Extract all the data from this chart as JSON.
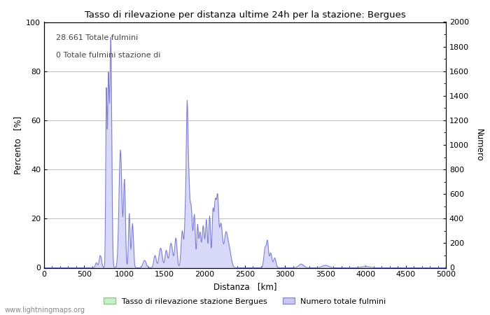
{
  "title": "Tasso di rilevazione per distanza ultime 24h per la stazione: Bergues",
  "xlabel": "Distanza   [km]",
  "ylabel_left": "Percento   [%]",
  "ylabel_right": "Numero",
  "annotation_lines": [
    "28.661 Totale fulmini",
    "0 Totale fulmini stazione di"
  ],
  "watermark": "www.lightningmaps.org",
  "legend": [
    {
      "label": "Tasso di rilevazione stazione Bergues",
      "color": "#c8f0c8",
      "edge": "#90c890"
    },
    {
      "label": "Numero totale fulmini",
      "color": "#c8c8f0",
      "edge": "#9090c8"
    }
  ],
  "xlim": [
    0,
    5000
  ],
  "ylim_left": [
    0,
    100
  ],
  "ylim_right": [
    0,
    2000
  ],
  "xticks": [
    0,
    500,
    1000,
    1500,
    2000,
    2500,
    3000,
    3500,
    4000,
    4500,
    5000
  ],
  "yticks_left": [
    0,
    20,
    40,
    60,
    80,
    100
  ],
  "yticks_right": [
    0,
    200,
    400,
    600,
    800,
    1000,
    1200,
    1400,
    1600,
    1800,
    2000
  ],
  "yticks_right_minor": [
    100,
    300,
    500,
    700,
    900,
    1100,
    1300,
    1500,
    1700,
    1900
  ],
  "bg_color": "#ffffff",
  "grid_color": "#c0c0c0",
  "line_color": "#8080d0",
  "fill_color": "#d8d8f8",
  "fill_color_green": "#d0f0d0"
}
